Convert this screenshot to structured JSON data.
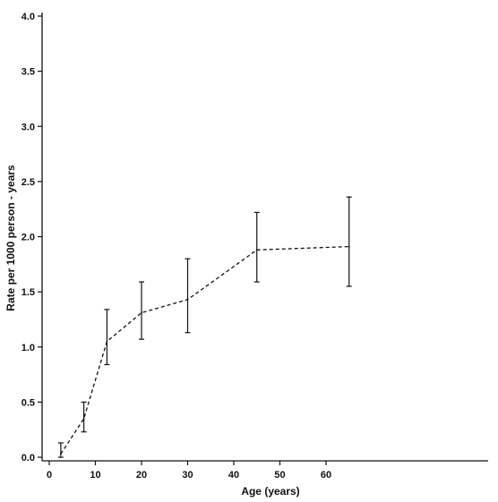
{
  "chart_data": {
    "type": "line",
    "title": "",
    "xlabel": "Age (years)",
    "ylabel": "Rate per 1000 person - years",
    "xlim": [
      0,
      68
    ],
    "ylim": [
      0,
      4.0
    ],
    "xticks": [
      0,
      10,
      20,
      30,
      40,
      50,
      60
    ],
    "yticks": [
      0.0,
      0.5,
      1.0,
      1.5,
      2.0,
      2.5,
      3.0,
      3.5,
      4.0
    ],
    "xtick_labels": [
      "0",
      "10",
      "20",
      "30",
      "40",
      "50",
      "60"
    ],
    "ytick_labels": [
      "0.0",
      "0.5",
      "1.0",
      "1.5",
      "2.0",
      "2.5",
      "3.0",
      "3.5",
      "4.0"
    ],
    "grid": false,
    "line_style": "dashed",
    "color": "#111111",
    "series": [
      {
        "x": [
          2.5,
          7.5,
          12.5,
          20,
          30,
          45,
          65
        ],
        "y": [
          0.03,
          0.35,
          1.05,
          1.31,
          1.43,
          1.88,
          1.91
        ],
        "y_lower": [
          0.0,
          0.23,
          0.84,
          1.07,
          1.13,
          1.59,
          1.55
        ],
        "y_upper": [
          0.13,
          0.5,
          1.34,
          1.59,
          1.8,
          2.22,
          2.36
        ]
      }
    ]
  }
}
